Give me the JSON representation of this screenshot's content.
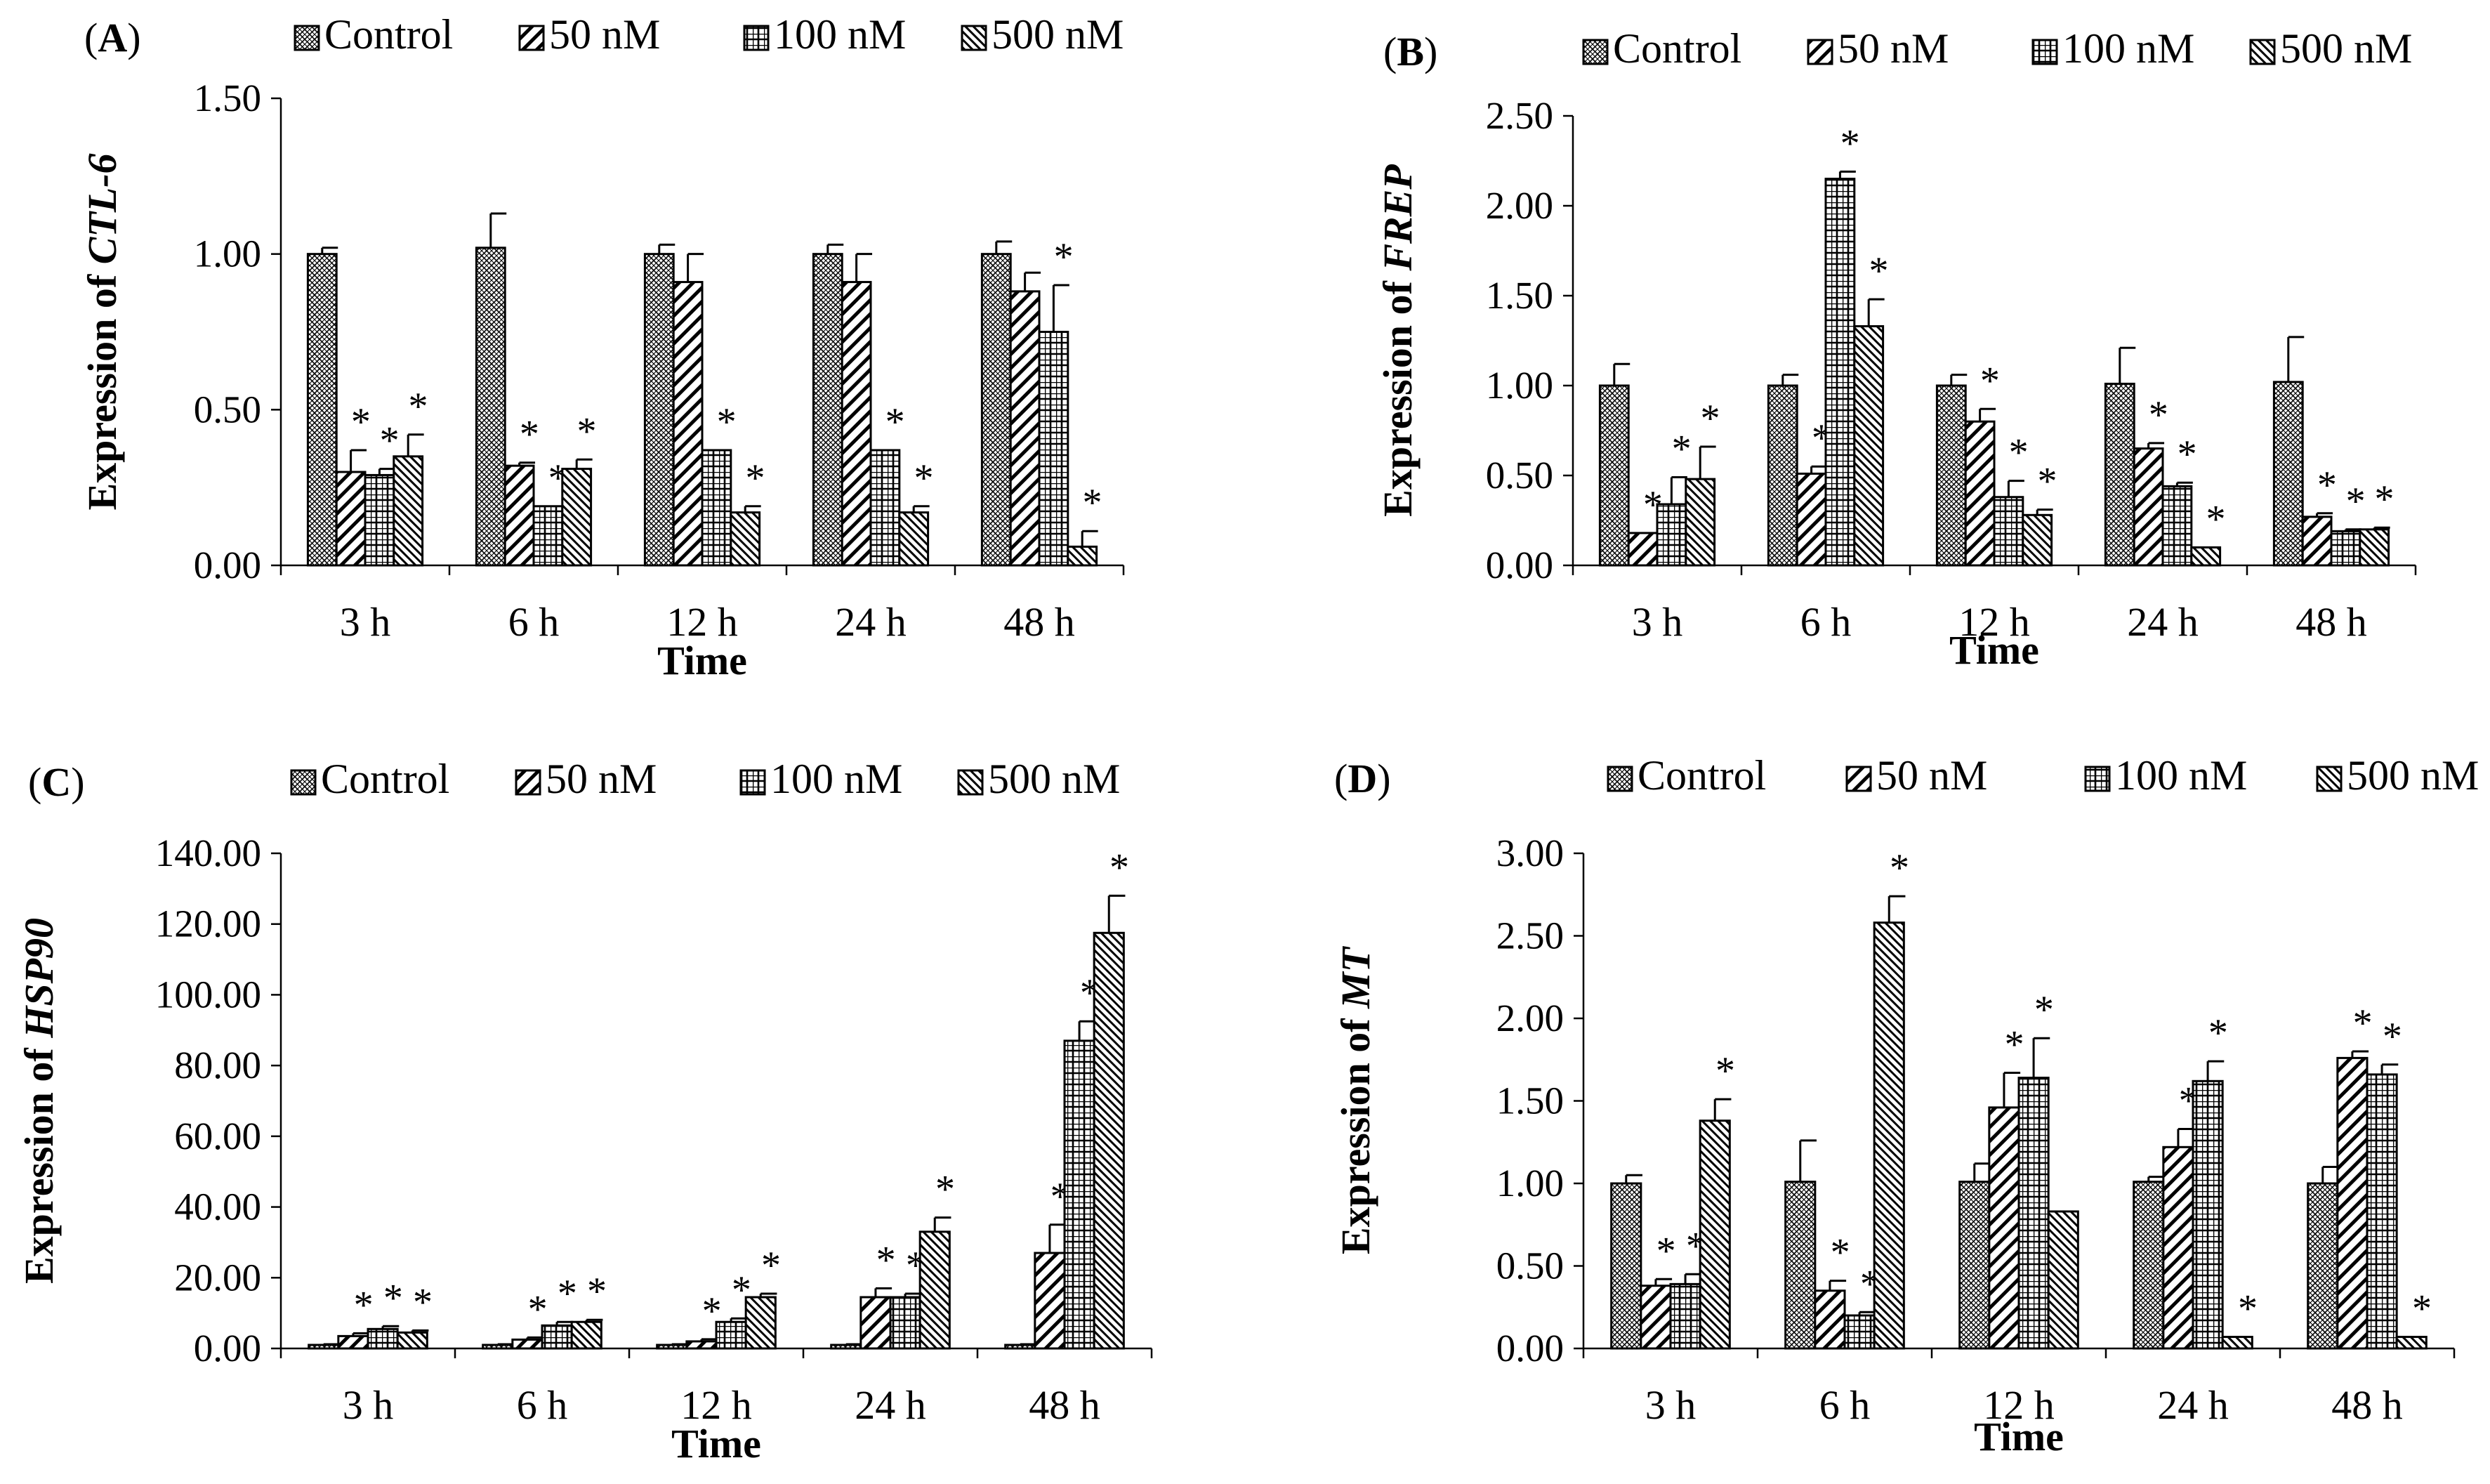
{
  "patterns": {
    "Control": "crosshatch-diamond",
    "50 nM": "diagonal-stripes",
    "100 nM": "grid-squares",
    "500 nM": "dense-diagonal"
  },
  "colors": {
    "bar_stroke": "#000000",
    "background": "#ffffff",
    "text": "#000000"
  },
  "chart_data": [
    {
      "type": "bar",
      "panel_label": "A",
      "title": "",
      "ylabel_prefix": "Expression of ",
      "ylabel_gene": "CTL-6",
      "xlabel": "Time",
      "categories": [
        "3 h",
        "6 h",
        "12 h",
        "24 h",
        "48 h"
      ],
      "ylim": [
        0,
        1.5
      ],
      "yticks": [
        "0.00",
        "0.50",
        "1.00",
        "1.50"
      ],
      "legend": [
        "Control",
        "50 nM",
        "100 nM",
        "500 nM"
      ],
      "series": [
        {
          "name": "Control",
          "values": [
            1.0,
            1.02,
            1.0,
            1.0,
            1.0
          ],
          "errors": [
            0.02,
            0.11,
            0.03,
            0.03,
            0.04
          ],
          "sig": [
            false,
            false,
            false,
            false,
            false
          ]
        },
        {
          "name": "50 nM",
          "values": [
            0.3,
            0.32,
            0.91,
            0.91,
            0.88
          ],
          "errors": [
            0.07,
            0.01,
            0.09,
            0.09,
            0.06
          ],
          "sig": [
            true,
            true,
            false,
            false,
            false
          ]
        },
        {
          "name": "100 nM",
          "values": [
            0.29,
            0.19,
            0.37,
            0.37,
            0.75
          ],
          "errors": [
            0.02,
            0.0,
            0.0,
            0.0,
            0.15
          ],
          "sig": [
            true,
            true,
            true,
            true,
            true
          ]
        },
        {
          "name": "500 nM",
          "values": [
            0.35,
            0.31,
            0.17,
            0.17,
            0.06
          ],
          "errors": [
            0.07,
            0.03,
            0.02,
            0.02,
            0.05
          ],
          "sig": [
            true,
            true,
            true,
            true,
            true
          ]
        }
      ]
    },
    {
      "type": "bar",
      "panel_label": "B",
      "title": "",
      "ylabel_prefix": "Expression of ",
      "ylabel_gene": "FREP",
      "xlabel": "Time",
      "categories": [
        "3 h",
        "6 h",
        "12 h",
        "24 h",
        "48 h"
      ],
      "ylim": [
        0,
        2.5
      ],
      "yticks": [
        "0.00",
        "0.50",
        "1.00",
        "1.50",
        "2.00",
        "2.50"
      ],
      "legend": [
        "Control",
        "50 nM",
        "100 nM",
        "500 nM"
      ],
      "series": [
        {
          "name": "Control",
          "values": [
            1.0,
            1.0,
            1.0,
            1.01,
            1.02
          ],
          "errors": [
            0.12,
            0.06,
            0.06,
            0.2,
            0.25
          ],
          "sig": [
            false,
            false,
            false,
            false,
            false
          ]
        },
        {
          "name": "50 nM",
          "values": [
            0.18,
            0.51,
            0.8,
            0.65,
            0.27
          ],
          "errors": [
            0.0,
            0.04,
            0.07,
            0.03,
            0.02
          ],
          "sig": [
            true,
            true,
            true,
            true,
            true
          ]
        },
        {
          "name": "100 nM",
          "values": [
            0.34,
            2.15,
            0.38,
            0.44,
            0.19
          ],
          "errors": [
            0.15,
            0.04,
            0.09,
            0.02,
            0.01
          ],
          "sig": [
            true,
            true,
            true,
            true,
            true
          ]
        },
        {
          "name": "500 nM",
          "values": [
            0.48,
            1.33,
            0.28,
            0.1,
            0.2
          ],
          "errors": [
            0.18,
            0.15,
            0.03,
            0.0,
            0.01
          ],
          "sig": [
            true,
            true,
            true,
            true,
            true
          ]
        }
      ]
    },
    {
      "type": "bar",
      "panel_label": "C",
      "title": "",
      "ylabel_prefix": "Expression of ",
      "ylabel_gene": "HSP90",
      "xlabel": "Time",
      "categories": [
        "3 h",
        "6 h",
        "12 h",
        "24 h",
        "48 h"
      ],
      "ylim": [
        0,
        140
      ],
      "yticks": [
        "0.00",
        "20.00",
        "40.00",
        "60.00",
        "80.00",
        "100.00",
        "120.00",
        "140.00"
      ],
      "legend": [
        "Control",
        "50 nM",
        "100 nM",
        "500 nM"
      ],
      "series": [
        {
          "name": "Control",
          "values": [
            1.0,
            1.0,
            1.0,
            1.0,
            1.0
          ],
          "errors": [
            0.2,
            0.2,
            0.2,
            0.2,
            0.2
          ],
          "sig": [
            false,
            false,
            false,
            false,
            false
          ]
        },
        {
          "name": "50 nM",
          "values": [
            3.5,
            2.5,
            2.0,
            14.5,
            27.0
          ],
          "errors": [
            0.8,
            0.6,
            0.6,
            2.5,
            8.0
          ],
          "sig": [
            true,
            true,
            true,
            true,
            true
          ]
        },
        {
          "name": "100 nM",
          "values": [
            5.5,
            6.5,
            7.5,
            14.5,
            87.0
          ],
          "errors": [
            0.8,
            1.0,
            1.0,
            1.0,
            5.5
          ],
          "sig": [
            true,
            true,
            true,
            true,
            true
          ]
        },
        {
          "name": "500 nM",
          "values": [
            4.5,
            7.5,
            14.5,
            33.0,
            117.5
          ],
          "errors": [
            0.6,
            0.6,
            1.0,
            4.0,
            10.5
          ],
          "sig": [
            true,
            true,
            true,
            true,
            true
          ]
        }
      ]
    },
    {
      "type": "bar",
      "panel_label": "D",
      "title": "",
      "ylabel_prefix": "Expression of ",
      "ylabel_gene": "MT",
      "xlabel": "Time",
      "categories": [
        "3 h",
        "6 h",
        "12 h",
        "24 h",
        "48 h"
      ],
      "ylim": [
        0,
        3.0
      ],
      "yticks": [
        "0.00",
        "0.50",
        "1.00",
        "1.50",
        "2.00",
        "2.50",
        "3.00"
      ],
      "legend": [
        "Control",
        "50 nM",
        "100 nM",
        "500 nM"
      ],
      "series": [
        {
          "name": "Control",
          "values": [
            1.0,
            1.01,
            1.01,
            1.01,
            1.0
          ],
          "errors": [
            0.05,
            0.25,
            0.11,
            0.03,
            0.1
          ],
          "sig": [
            false,
            false,
            false,
            false,
            false
          ]
        },
        {
          "name": "50 nM",
          "values": [
            0.38,
            0.35,
            1.46,
            1.22,
            1.76
          ],
          "errors": [
            0.04,
            0.06,
            0.21,
            0.11,
            0.04
          ],
          "sig": [
            true,
            true,
            true,
            true,
            true
          ]
        },
        {
          "name": "100 nM",
          "values": [
            0.39,
            0.2,
            1.64,
            1.62,
            1.66
          ],
          "errors": [
            0.06,
            0.02,
            0.24,
            0.12,
            0.06
          ],
          "sig": [
            true,
            true,
            true,
            true,
            true
          ]
        },
        {
          "name": "500 nM",
          "values": [
            1.38,
            2.58,
            0.83,
            0.07,
            0.07
          ],
          "errors": [
            0.13,
            0.16,
            0.0,
            0.0,
            0.0
          ],
          "sig": [
            true,
            true,
            false,
            true,
            true
          ]
        }
      ]
    }
  ]
}
